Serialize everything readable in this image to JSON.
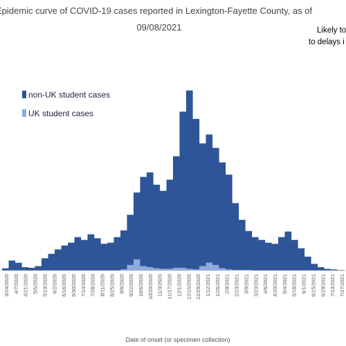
{
  "chart_data": {
    "type": "bar",
    "stacked": true,
    "title": "Epidemic curve of COVID-19 cases reported in Lexington-Fayette County, as of",
    "subtitle": "09/08/2021",
    "note_lines": [
      "Likely to",
      "to delays i"
    ],
    "xlabel": "Date of onset (or specimen collection)",
    "ylabel": "",
    "legend_placement": "top-left",
    "grid": false,
    "colors": {
      "non_uk": "#2E5597",
      "uk": "#8FAADC"
    },
    "series": [
      {
        "name": "non-UK student cases",
        "values": [
          4,
          18,
          14,
          6,
          5,
          8,
          22,
          30,
          38,
          45,
          50,
          60,
          55,
          65,
          58,
          48,
          50,
          60,
          70,
          90,
          120,
          160,
          170,
          150,
          140,
          160,
          200,
          280,
          320,
          270,
          220,
          230,
          210,
          190,
          170,
          120,
          90,
          70,
          60,
          55,
          50,
          48,
          60,
          70,
          55,
          40,
          25,
          12,
          6,
          3,
          2,
          1
        ]
      },
      {
        "name": "UK student cases",
        "values": [
          0,
          0,
          0,
          0,
          0,
          0,
          0,
          0,
          0,
          0,
          0,
          0,
          0,
          0,
          0,
          0,
          0,
          0,
          2,
          10,
          20,
          8,
          6,
          4,
          3,
          3,
          5,
          5,
          3,
          2,
          8,
          14,
          10,
          4,
          2,
          1,
          1,
          1,
          0,
          0,
          0,
          0,
          0,
          0,
          0,
          0,
          0,
          0,
          0,
          0,
          0,
          0
        ]
      }
    ],
    "tick_labels": [
      "3/24/2020",
      "4/7/2020",
      "4/21/2020",
      "5/5/2020",
      "5/19/2020",
      "6/2/2020",
      "6/16/2020",
      "6/30/2020",
      "7/14/2020",
      "7/28/2020",
      "8/11/2020",
      "8/25/2020",
      "9/8/2020",
      "9/22/2020",
      "10/6/2020",
      "10/20/2020",
      "11/3/2020",
      "11/17/2020",
      "12/1/2020",
      "12/15/2020",
      "12/29/2020",
      "1/12/2021",
      "1/26/2021",
      "2/9/2021",
      "2/23/2021",
      "3/9/2021",
      "3/23/2021",
      "4/6/2021",
      "4/20/2021",
      "5/4/2021",
      "5/18/2021",
      "6/1/2021",
      "6/15/2021",
      "6/29/2021",
      "7/13/2021",
      "7/27/2021"
    ],
    "ylim": [
      0,
      340
    ]
  }
}
